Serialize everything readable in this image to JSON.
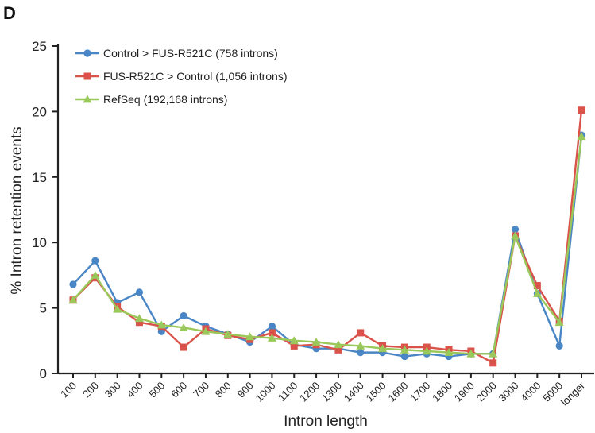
{
  "panel_label": "D",
  "chart_data": {
    "type": "line",
    "xlabel": "Intron length",
    "ylabel": "% Intron retention events",
    "ylim": [
      0,
      25
    ],
    "yticks": [
      0,
      5,
      10,
      15,
      20,
      25
    ],
    "grid": false,
    "legend_position": "top-left",
    "categories": [
      "100",
      "200",
      "300",
      "400",
      "500",
      "600",
      "700",
      "800",
      "900",
      "1000",
      "1100",
      "1200",
      "1300",
      "1400",
      "1500",
      "1600",
      "1700",
      "1800",
      "1900",
      "2000",
      "3000",
      "4000",
      "5000",
      "longer"
    ],
    "series": [
      {
        "name": "Control > FUS-R521C (758 introns)",
        "color": "#4a86c5",
        "marker": "circle",
        "values": [
          6.8,
          8.6,
          5.4,
          6.2,
          3.2,
          4.4,
          3.6,
          3.0,
          2.4,
          3.6,
          2.2,
          1.9,
          1.9,
          1.6,
          1.6,
          1.3,
          1.5,
          1.3,
          1.5,
          1.5,
          11.0,
          6.1,
          2.1,
          18.2
        ]
      },
      {
        "name": "FUS-R521C > Control (1,056 introns)",
        "color": "#d9534a",
        "marker": "square",
        "values": [
          5.6,
          7.3,
          5.1,
          3.9,
          3.6,
          2.0,
          3.4,
          2.9,
          2.6,
          3.1,
          2.1,
          2.2,
          1.8,
          3.1,
          2.1,
          2.0,
          2.0,
          1.8,
          1.7,
          0.8,
          10.5,
          6.7,
          4.0,
          20.1
        ]
      },
      {
        "name": "RefSeq (192,168 introns)",
        "color": "#9bc85a",
        "marker": "triangle",
        "values": [
          5.6,
          7.5,
          4.9,
          4.2,
          3.7,
          3.5,
          3.2,
          3.0,
          2.8,
          2.7,
          2.5,
          2.4,
          2.2,
          2.1,
          1.9,
          1.8,
          1.7,
          1.6,
          1.5,
          1.5,
          10.5,
          6.1,
          3.9,
          18.1
        ]
      }
    ]
  }
}
